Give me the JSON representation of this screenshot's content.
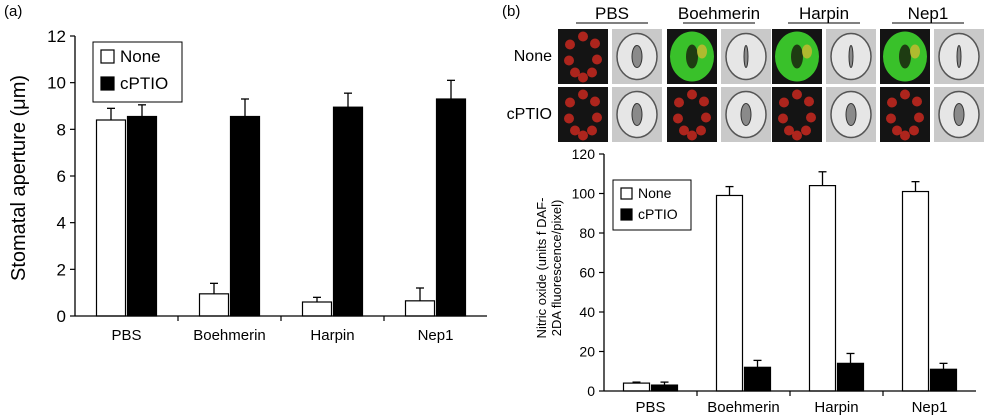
{
  "panel_a_label": "(a)",
  "panel_b_label": "(b)",
  "micrograph": {
    "columns": [
      "PBS",
      "Boehmerin",
      "Harpin",
      "Nep1"
    ],
    "rows": [
      "None",
      "cPTIO"
    ]
  },
  "colors": {
    "none_fill": "#ffffff",
    "cptio_fill": "#000000",
    "fluor_green": "#39c12a",
    "fluor_red": "#c8281e",
    "bright_field": "#c9c9c9"
  },
  "chart_data": [
    {
      "type": "bar",
      "panel": "a",
      "categories": [
        "PBS",
        "Boehmerin",
        "Harpin",
        "Nep1"
      ],
      "ylabel": "Stomatal aperture (μm)",
      "ylim": [
        0,
        12
      ],
      "yticks": [
        "0",
        "2",
        "4",
        "6",
        "8",
        "10",
        "12"
      ],
      "legend_position": "top-left",
      "series": [
        {
          "name": "None",
          "values": [
            8.4,
            0.95,
            0.6,
            0.65
          ],
          "errors": [
            0.5,
            0.45,
            0.2,
            0.55
          ]
        },
        {
          "name": "cPTIO",
          "values": [
            8.55,
            8.55,
            8.95,
            9.3
          ],
          "errors": [
            0.5,
            0.75,
            0.6,
            0.8
          ]
        }
      ]
    },
    {
      "type": "bar",
      "panel": "b",
      "categories": [
        "PBS",
        "Boehmerin",
        "Harpin",
        "Nep1"
      ],
      "ylabel_line1": "Nitric oxide (units   f DAF-",
      "ylabel_line2": "2DA fluorescence/pixel)",
      "ylim": [
        0,
        120
      ],
      "yticks": [
        "0",
        "20",
        "40",
        "60",
        "80",
        "100",
        "120"
      ],
      "legend_position": "top-left",
      "series": [
        {
          "name": "None",
          "values": [
            4,
            99,
            104,
            101
          ],
          "errors": [
            0.5,
            4.5,
            7,
            5
          ]
        },
        {
          "name": "cPTIO",
          "values": [
            3,
            12,
            14,
            11
          ],
          "errors": [
            1.5,
            3.5,
            5,
            3
          ]
        }
      ]
    }
  ]
}
